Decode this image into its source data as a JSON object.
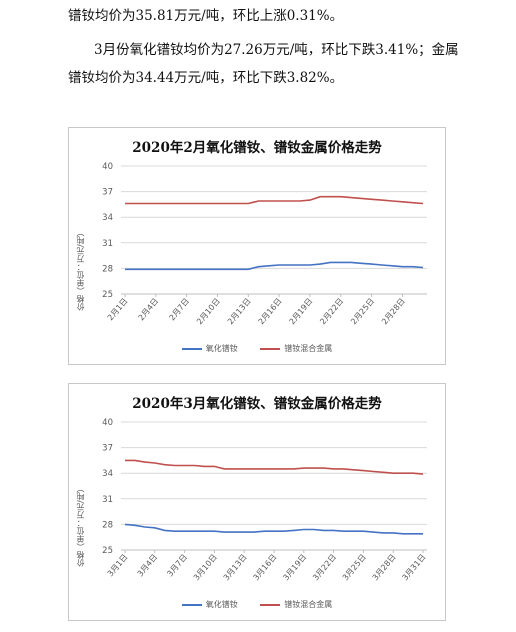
{
  "text": {
    "p1": "镨钕均价为35.81万元/吨，环比上涨0.31%。",
    "p2a": "3月份氧化镨钕均价为27.26万元/吨，环比下跌3.41%；金属",
    "p2b": "镨钕均价为34.44万元/吨，环比下跌3.82%。"
  },
  "colors": {
    "oxide": "#4472c4",
    "metal": "#c0504d",
    "grid": "#d9d9d9",
    "axis": "#bfbfbf"
  },
  "chart_data": [
    {
      "type": "line",
      "title": "2020年2月氧化镨钕、镨钕金属价格走势",
      "ylabel": "价格（单位：万元/吨）",
      "ylim": [
        25,
        40
      ],
      "yticks": [
        25,
        28,
        31,
        34,
        37,
        40
      ],
      "x_tick_labels": [
        "2月1日",
        "2月4日",
        "2月7日",
        "2月10日",
        "2月13日",
        "2月16日",
        "2月19日",
        "2月22日",
        "2月25日",
        "2月28日"
      ],
      "legend_position": "bottom",
      "grid": true,
      "series": [
        {
          "name": "氧化镨钕",
          "color": "#4472c4",
          "values": [
            27.9,
            27.9,
            27.9,
            27.9,
            27.9,
            27.9,
            27.9,
            27.9,
            27.9,
            27.9,
            27.9,
            27.9,
            27.9,
            28.2,
            28.3,
            28.4,
            28.4,
            28.4,
            28.4,
            28.5,
            28.7,
            28.7,
            28.7,
            28.6,
            28.5,
            28.4,
            28.3,
            28.2,
            28.2,
            28.1
          ]
        },
        {
          "name": "镨钕混合金属",
          "color": "#c0504d",
          "values": [
            35.6,
            35.6,
            35.6,
            35.6,
            35.6,
            35.6,
            35.6,
            35.6,
            35.6,
            35.6,
            35.6,
            35.6,
            35.6,
            35.9,
            35.9,
            35.9,
            35.9,
            35.9,
            36.0,
            36.4,
            36.4,
            36.4,
            36.3,
            36.2,
            36.1,
            36.0,
            35.9,
            35.8,
            35.7,
            35.6
          ]
        }
      ]
    },
    {
      "type": "line",
      "title": "2020年3月氧化镨钕、镨钕金属价格走势",
      "ylabel": "价格（单位：万元/吨）",
      "ylim": [
        25,
        40
      ],
      "yticks": [
        25,
        28,
        31,
        34,
        37,
        40
      ],
      "x_tick_labels": [
        "3月1日",
        "3月4日",
        "3月7日",
        "3月10日",
        "3月13日",
        "3月16日",
        "3月19日",
        "3月22日",
        "3月25日",
        "3月28日",
        "3月31日"
      ],
      "legend_position": "bottom",
      "grid": true,
      "series": [
        {
          "name": "氧化镨钕",
          "color": "#4472c4",
          "values": [
            28.0,
            27.9,
            27.7,
            27.6,
            27.3,
            27.2,
            27.2,
            27.2,
            27.2,
            27.2,
            27.1,
            27.1,
            27.1,
            27.1,
            27.2,
            27.2,
            27.2,
            27.3,
            27.4,
            27.4,
            27.3,
            27.3,
            27.2,
            27.2,
            27.2,
            27.1,
            27.0,
            27.0,
            26.9,
            26.9,
            26.9
          ]
        },
        {
          "name": "镨钕混合金属",
          "color": "#c0504d",
          "values": [
            35.5,
            35.5,
            35.3,
            35.2,
            35.0,
            34.9,
            34.9,
            34.9,
            34.8,
            34.8,
            34.5,
            34.5,
            34.5,
            34.5,
            34.5,
            34.5,
            34.5,
            34.5,
            34.6,
            34.6,
            34.6,
            34.5,
            34.5,
            34.4,
            34.3,
            34.2,
            34.1,
            34.0,
            34.0,
            34.0,
            33.9
          ]
        }
      ]
    }
  ]
}
